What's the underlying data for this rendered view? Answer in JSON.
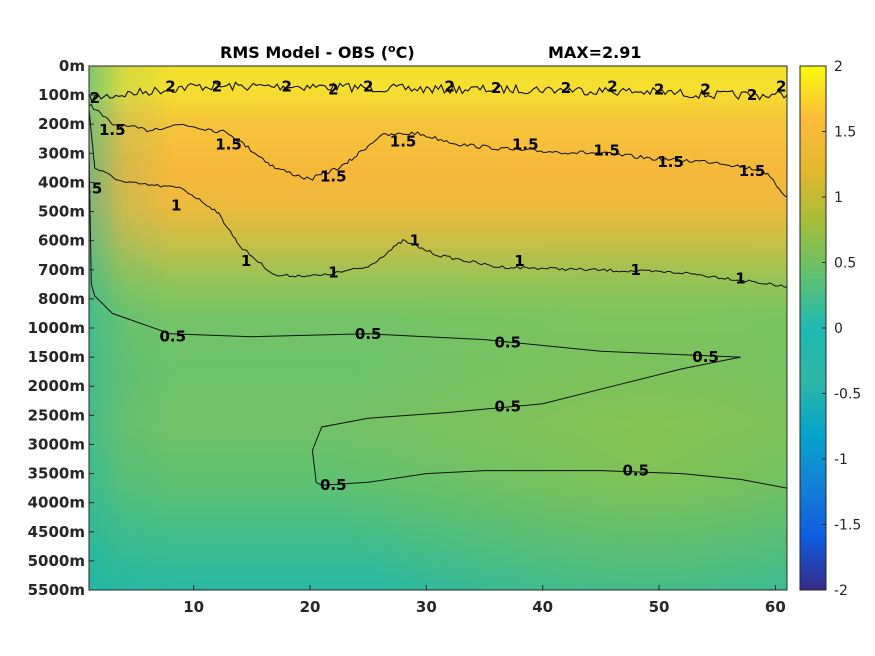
{
  "chart_data": {
    "type": "heatmap",
    "title": "RMS Model - OBS (",
    "title_superscript": "o",
    "title_unit": "C)",
    "max_label": "MAX=2.91",
    "x": {
      "range": [
        1,
        61
      ],
      "ticks": [
        "10",
        "20",
        "30",
        "40",
        "50",
        "60"
      ],
      "tick_values": [
        10,
        20,
        30,
        40,
        50,
        60
      ]
    },
    "y": {
      "levels": [
        "0m",
        "100m",
        "200m",
        "300m",
        "400m",
        "500m",
        "600m",
        "700m",
        "800m",
        "1000m",
        "1500m",
        "2000m",
        "2500m",
        "3000m",
        "3500m",
        "4000m",
        "4500m",
        "5000m",
        "5500m"
      ]
    },
    "colorbar": {
      "range": [
        -2,
        2
      ],
      "ticks": [
        "2",
        "1.5",
        "1",
        "0.5",
        "0",
        "-0.5",
        "-1",
        "-1.5",
        "-2"
      ],
      "tick_values": [
        2,
        1.5,
        1,
        0.5,
        0,
        -0.5,
        -1,
        -1.5,
        -2
      ],
      "colormap": "parula"
    },
    "contour_levels": [
      0.5,
      1,
      1.5,
      2
    ],
    "contours": [
      {
        "level": 2,
        "label": "2",
        "points": [
          [
            1,
            1.1
          ],
          [
            10,
            0.7
          ],
          [
            20,
            0.7
          ],
          [
            30,
            0.8
          ],
          [
            40,
            0.8
          ],
          [
            50,
            0.9
          ],
          [
            55,
            1.0
          ],
          [
            61,
            1.0
          ]
        ],
        "labels_at": [
          [
            1.5,
            1.1
          ],
          [
            8,
            0.7
          ],
          [
            12,
            0.7
          ],
          [
            18,
            0.7
          ],
          [
            22,
            0.8
          ],
          [
            25,
            0.7
          ],
          [
            32,
            0.7
          ],
          [
            36,
            0.75
          ],
          [
            42,
            0.75
          ],
          [
            46,
            0.7
          ],
          [
            50,
            0.8
          ],
          [
            54,
            0.8
          ],
          [
            58,
            1.0
          ],
          [
            60.5,
            0.7
          ]
        ]
      },
      {
        "level": 1.5,
        "label": "1.5",
        "points": [
          [
            1,
            1.3
          ],
          [
            3,
            2.0
          ],
          [
            6,
            2.2
          ],
          [
            9,
            2.0
          ],
          [
            13,
            2.3
          ],
          [
            17,
            3.5
          ],
          [
            20,
            3.9
          ],
          [
            23,
            3.4
          ],
          [
            26,
            2.4
          ],
          [
            29,
            2.3
          ],
          [
            33,
            2.7
          ],
          [
            38,
            2.9
          ],
          [
            45,
            3.0
          ],
          [
            50,
            3.2
          ],
          [
            55,
            3.3
          ],
          [
            59,
            3.6
          ],
          [
            61,
            4.5
          ]
        ],
        "labels_at": [
          [
            3,
            2.2
          ],
          [
            13,
            2.7
          ],
          [
            22,
            3.8
          ],
          [
            28,
            2.6
          ],
          [
            38.5,
            2.7
          ],
          [
            45.5,
            2.9
          ],
          [
            51,
            3.3
          ],
          [
            58,
            3.6
          ]
        ]
      },
      {
        "level": 1,
        "label": "1",
        "points": [
          [
            1,
            1.5
          ],
          [
            1.5,
            3.5
          ],
          [
            4,
            4.0
          ],
          [
            9,
            4.2
          ],
          [
            12,
            5.0
          ],
          [
            14,
            6.2
          ],
          [
            17,
            7.2
          ],
          [
            21,
            7.2
          ],
          [
            25,
            6.9
          ],
          [
            28,
            6.0
          ],
          [
            31,
            6.5
          ],
          [
            36,
            6.9
          ],
          [
            44,
            7.0
          ],
          [
            52,
            7.1
          ],
          [
            58,
            7.4
          ],
          [
            61,
            7.6
          ]
        ],
        "labels_at": [
          [
            8.5,
            4.8
          ],
          [
            14.5,
            6.7
          ],
          [
            22,
            7.1
          ],
          [
            29,
            6.0
          ],
          [
            38,
            6.7
          ],
          [
            48,
            7.0
          ],
          [
            57,
            7.3
          ]
        ]
      },
      {
        "level": 0.5,
        "label": "0.5",
        "points": [
          [
            1,
            3.0
          ],
          [
            1.2,
            7.5
          ],
          [
            1.5,
            7.9
          ],
          [
            3,
            8.5
          ],
          [
            8,
            9.2
          ],
          [
            15,
            9.3
          ],
          [
            25,
            9.2
          ],
          [
            35,
            9.4
          ],
          [
            45,
            9.8
          ],
          [
            57,
            10.0
          ]
        ],
        "labels_at": [
          [
            1,
            4.2
          ],
          [
            8.2,
            9.3
          ],
          [
            25,
            9.2
          ],
          [
            37,
            9.5
          ],
          [
            54,
            10.0
          ]
        ]
      },
      {
        "level": 0.5,
        "label": "0.5",
        "points": [
          [
            57,
            10.0
          ],
          [
            52,
            10.4
          ],
          [
            47,
            10.9
          ],
          [
            40,
            11.6
          ],
          [
            32,
            11.9
          ],
          [
            25,
            12.1
          ],
          [
            21,
            12.4
          ],
          [
            20.2,
            13.2
          ],
          [
            20.5,
            14.2
          ],
          [
            20.5,
            14.3
          ]
        ],
        "labels_at": [
          [
            37,
            11.7
          ]
        ]
      },
      {
        "level": 0.5,
        "label": "0.5",
        "points": [
          [
            20.5,
            14.3
          ],
          [
            21,
            14.4
          ],
          [
            25,
            14.3
          ],
          [
            30,
            14.0
          ],
          [
            35,
            13.9
          ],
          [
            40,
            13.9
          ],
          [
            45,
            13.9
          ],
          [
            52,
            14.0
          ],
          [
            57,
            14.2
          ],
          [
            61,
            14.5
          ]
        ],
        "labels_at": [
          [
            22,
            14.4
          ],
          [
            48,
            13.9
          ]
        ]
      }
    ]
  }
}
